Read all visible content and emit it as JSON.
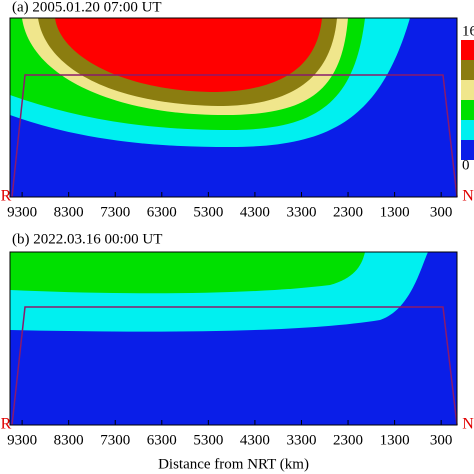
{
  "chart_data": [
    {
      "type": "contour",
      "title": "(a) 2005.01.20  07:00 UT",
      "xlim": [
        9560,
        -40
      ],
      "xticks": [
        9300,
        8300,
        7300,
        6300,
        5300,
        4300,
        3300,
        2300,
        1300,
        300
      ],
      "annotations": [
        "R",
        "N"
      ],
      "clim": [
        0,
        16
      ]
    },
    {
      "type": "contour",
      "title": "(b) 2022.03.16  00:00 UT",
      "xlim": [
        9560,
        -40
      ],
      "xticks": [
        9300,
        8300,
        7300,
        6300,
        5300,
        4300,
        3300,
        2300,
        1300,
        300
      ],
      "annotations": [
        "R",
        "N"
      ],
      "xlabel": "Distance from NRT (km)"
    }
  ]
}
